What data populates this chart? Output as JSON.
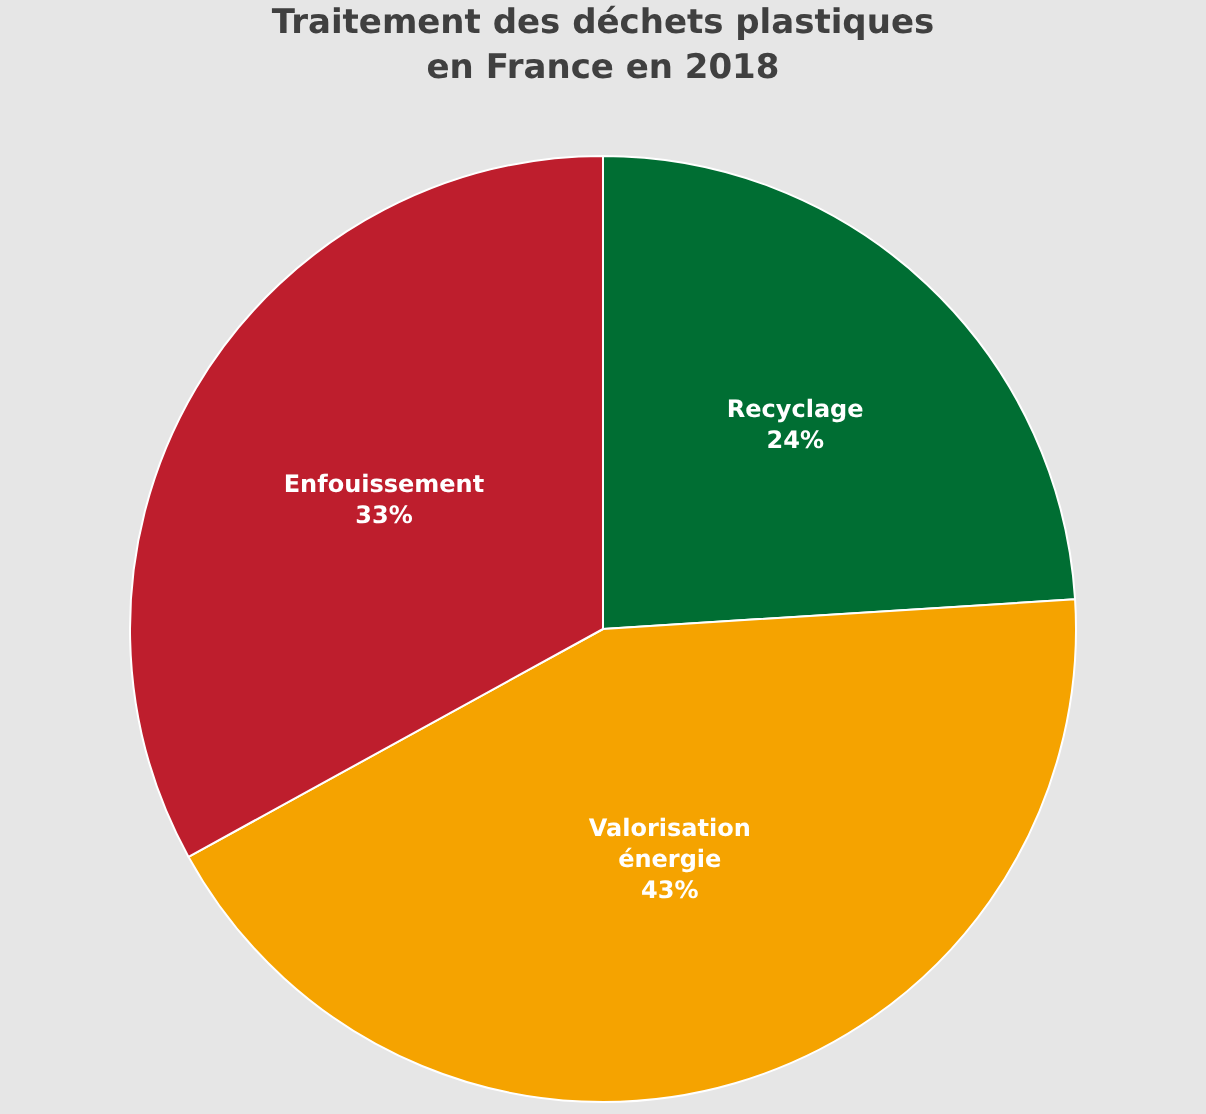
{
  "chart_data": {
    "type": "pie",
    "title": "Traitement des déchets plastiques\nen France en 2018",
    "categories": [
      "Recyclage",
      "Valorisation\nénergie",
      "Enfouissement"
    ],
    "values": [
      24,
      43,
      33
    ],
    "colors": [
      "#006e33",
      "#f5a300",
      "#be1e2d"
    ],
    "value_labels": [
      "24%",
      "43%",
      "33%"
    ],
    "legend": false
  }
}
